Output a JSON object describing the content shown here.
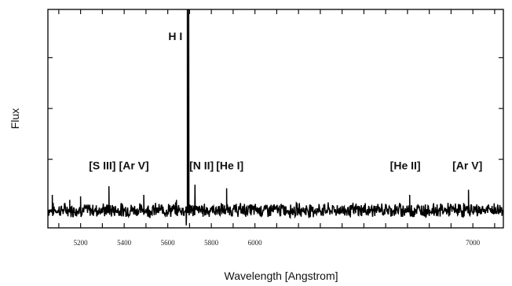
{
  "chart_data": {
    "type": "line",
    "title": "",
    "xlabel": "Wavelength [Angstrom]",
    "ylabel": "Flux",
    "xlim": [
      5050,
      7140
    ],
    "ylim": [
      -0.1,
      4.2
    ],
    "x_ticks": [
      5200,
      5400,
      5600,
      5800,
      6000,
      7000
    ],
    "x_tick_labels": [
      "5200",
      "5400",
      "5600",
      "5800",
      "6000",
      "7000"
    ],
    "grid": false,
    "continuum_level": 0.25,
    "series": [
      {
        "peaks": [
          {
            "x": 5070,
            "y": 0.55
          },
          {
            "x": 5150,
            "y": 0.45
          },
          {
            "x": 5200,
            "y": 0.52
          },
          {
            "x": 5330,
            "y": 0.72
          },
          {
            "x": 5490,
            "y": 0.55
          },
          {
            "x": 5640,
            "y": 0.45
          },
          {
            "x": 5690,
            "y": 4.2
          },
          {
            "x": 5696,
            "y": 4.2
          },
          {
            "x": 5725,
            "y": 0.75
          },
          {
            "x": 5870,
            "y": 0.68
          },
          {
            "x": 6710,
            "y": 0.55
          },
          {
            "x": 6980,
            "y": 0.65
          }
        ],
        "dips": [
          {
            "x": 5685,
            "y": -0.05
          }
        ]
      }
    ],
    "annotations": [
      {
        "text": "H I",
        "x": 5635,
        "y": 3.6
      },
      {
        "text": "[S III]",
        "x": 5300,
        "y": 1.05
      },
      {
        "text": "[Ar V]",
        "x": 5445,
        "y": 1.05
      },
      {
        "text": "[N II]",
        "x": 5755,
        "y": 1.05
      },
      {
        "text": "[He I]",
        "x": 5885,
        "y": 1.05
      },
      {
        "text": "[He II]",
        "x": 6690,
        "y": 1.05
      },
      {
        "text": "[Ar V]",
        "x": 6975,
        "y": 1.05
      }
    ]
  }
}
